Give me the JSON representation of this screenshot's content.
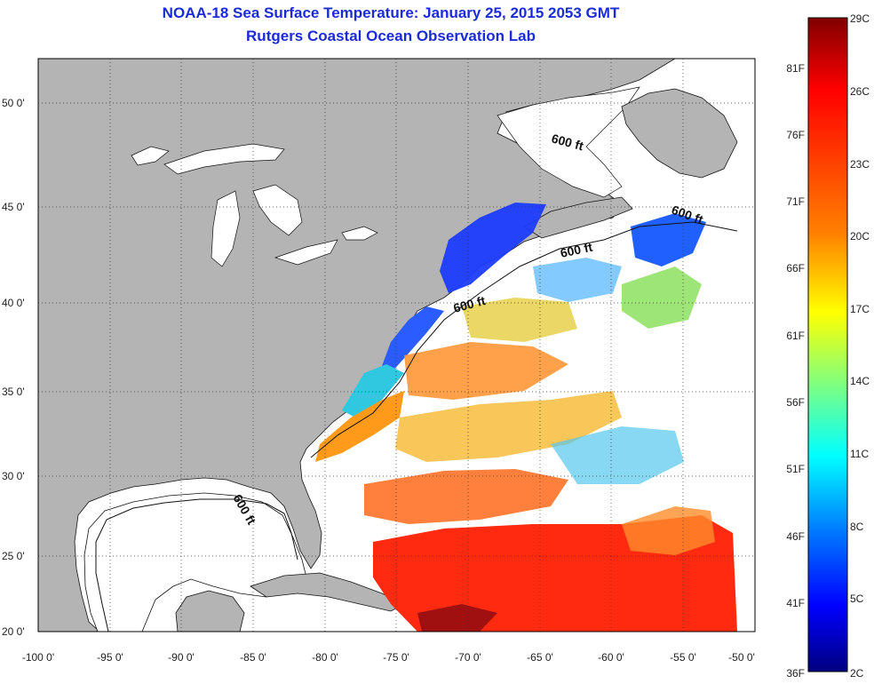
{
  "title": {
    "line1": "NOAA-18 Sea Surface Temperature:  January 25, 2015 2053 GMT",
    "line2": "Rutgers Coastal Ocean Observation Lab"
  },
  "map": {
    "lat_labels": [
      "50 0'",
      "45 0'",
      "40 0'",
      "35 0'",
      "30 0'",
      "25 0'",
      "20 0'"
    ],
    "lon_labels": [
      "-100 0'",
      "-95 0'",
      "-90 0'",
      "-85 0'",
      "-80 0'",
      "-75 0'",
      "-70 0'",
      "-65 0'",
      "-60 0'",
      "-55 0'",
      "-50 0'"
    ],
    "isobath_label": "600 ft",
    "land_color": "#b4b4b4",
    "nodata_color": "#ffffff"
  },
  "colorbar": {
    "fahrenheit_labels": [
      "81F",
      "76F",
      "71F",
      "66F",
      "61F",
      "56F",
      "51F",
      "46F",
      "41F"
    ],
    "celsius_labels": [
      "29C",
      "26C",
      "23C",
      "20C",
      "17C",
      "14C",
      "11C",
      "8C",
      "5C"
    ],
    "min_f_label": "36F",
    "min_c_label": "2C",
    "gradient": [
      "#800000",
      "#ff0000",
      "#ff8000",
      "#ffff00",
      "#80ff80",
      "#00ffff",
      "#0080ff",
      "#0000ff",
      "#000080"
    ]
  }
}
